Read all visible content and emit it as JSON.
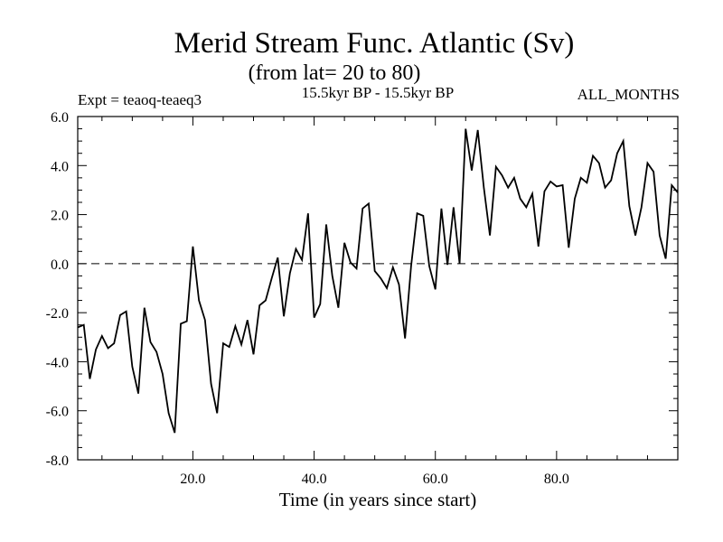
{
  "chart_data": {
    "type": "line",
    "title": "Merid Stream Func. Atlantic (Sv)",
    "subtitle": "(from lat= 20 to 80)",
    "header_left": "Expt = teaoq-teaeq3",
    "header_center": "15.5kyr BP - 15.5kyr BP",
    "header_right": "ALL_MONTHS",
    "xlabel": "Time (in years since start)",
    "ylabel": "",
    "xlim": [
      1,
      100
    ],
    "ylim": [
      -8,
      6
    ],
    "xticks": [
      {
        "value": 20,
        "label": "20.0"
      },
      {
        "value": 40,
        "label": "40.0"
      },
      {
        "value": 60,
        "label": "60.0"
      },
      {
        "value": 80,
        "label": "80.0"
      }
    ],
    "yticks": [
      {
        "value": 6,
        "label": "6.0"
      },
      {
        "value": 4,
        "label": "4.0"
      },
      {
        "value": 2,
        "label": "2.0"
      },
      {
        "value": 0,
        "label": "0.0"
      },
      {
        "value": -2,
        "label": "-2.0"
      },
      {
        "value": -4,
        "label": "-4.0"
      },
      {
        "value": -6,
        "label": "-6.0"
      },
      {
        "value": -8,
        "label": "-8.0"
      }
    ],
    "reference_line": {
      "y": 0,
      "style": "dashed"
    },
    "series": [
      {
        "name": "Merid Stream Func.",
        "x": [
          1,
          2,
          3,
          4,
          5,
          6,
          7,
          8,
          9,
          10,
          11,
          12,
          13,
          14,
          15,
          16,
          17,
          18,
          19,
          20,
          21,
          22,
          23,
          24,
          25,
          26,
          27,
          28,
          29,
          30,
          31,
          32,
          33,
          34,
          35,
          36,
          37,
          38,
          39,
          40,
          41,
          42,
          43,
          44,
          45,
          46,
          47,
          48,
          49,
          50,
          51,
          52,
          53,
          54,
          55,
          56,
          57,
          58,
          59,
          60,
          61,
          62,
          63,
          64,
          65,
          66,
          67,
          68,
          69,
          70,
          71,
          72,
          73,
          74,
          75,
          76,
          77,
          78,
          79,
          80,
          81,
          82,
          83,
          84,
          85,
          86,
          87,
          88,
          89,
          90,
          91,
          92,
          93,
          94,
          95,
          96,
          97,
          98,
          99,
          100
        ],
        "values": [
          -2.6,
          -2.5,
          -4.7,
          -3.5,
          -2.95,
          -3.45,
          -3.25,
          -2.1,
          -1.95,
          -4.2,
          -5.3,
          -1.8,
          -3.2,
          -3.6,
          -4.5,
          -6.1,
          -6.9,
          -2.45,
          -2.35,
          0.7,
          -1.5,
          -2.3,
          -4.9,
          -6.1,
          -3.25,
          -3.4,
          -2.55,
          -3.3,
          -2.3,
          -3.7,
          -1.7,
          -1.5,
          -0.6,
          0.25,
          -2.15,
          -0.4,
          0.6,
          0.15,
          2.05,
          -2.2,
          -1.65,
          1.6,
          -0.5,
          -1.8,
          0.85,
          0.05,
          -0.2,
          2.25,
          2.45,
          -0.3,
          -0.6,
          -1.0,
          -0.15,
          -0.85,
          -3.05,
          -0.1,
          2.05,
          1.95,
          -0.1,
          -1.05,
          2.25,
          -0.05,
          2.3,
          0.0,
          5.5,
          3.8,
          5.45,
          3.1,
          1.15,
          3.95,
          3.6,
          3.1,
          3.5,
          2.65,
          2.3,
          2.85,
          0.7,
          2.95,
          3.35,
          3.15,
          3.2,
          0.65,
          2.65,
          3.5,
          3.3,
          4.4,
          4.1,
          3.1,
          3.4,
          4.5,
          5.0,
          2.35,
          1.15,
          2.3,
          4.1,
          3.75,
          1.15,
          0.2,
          3.2,
          2.9
        ]
      }
    ]
  }
}
